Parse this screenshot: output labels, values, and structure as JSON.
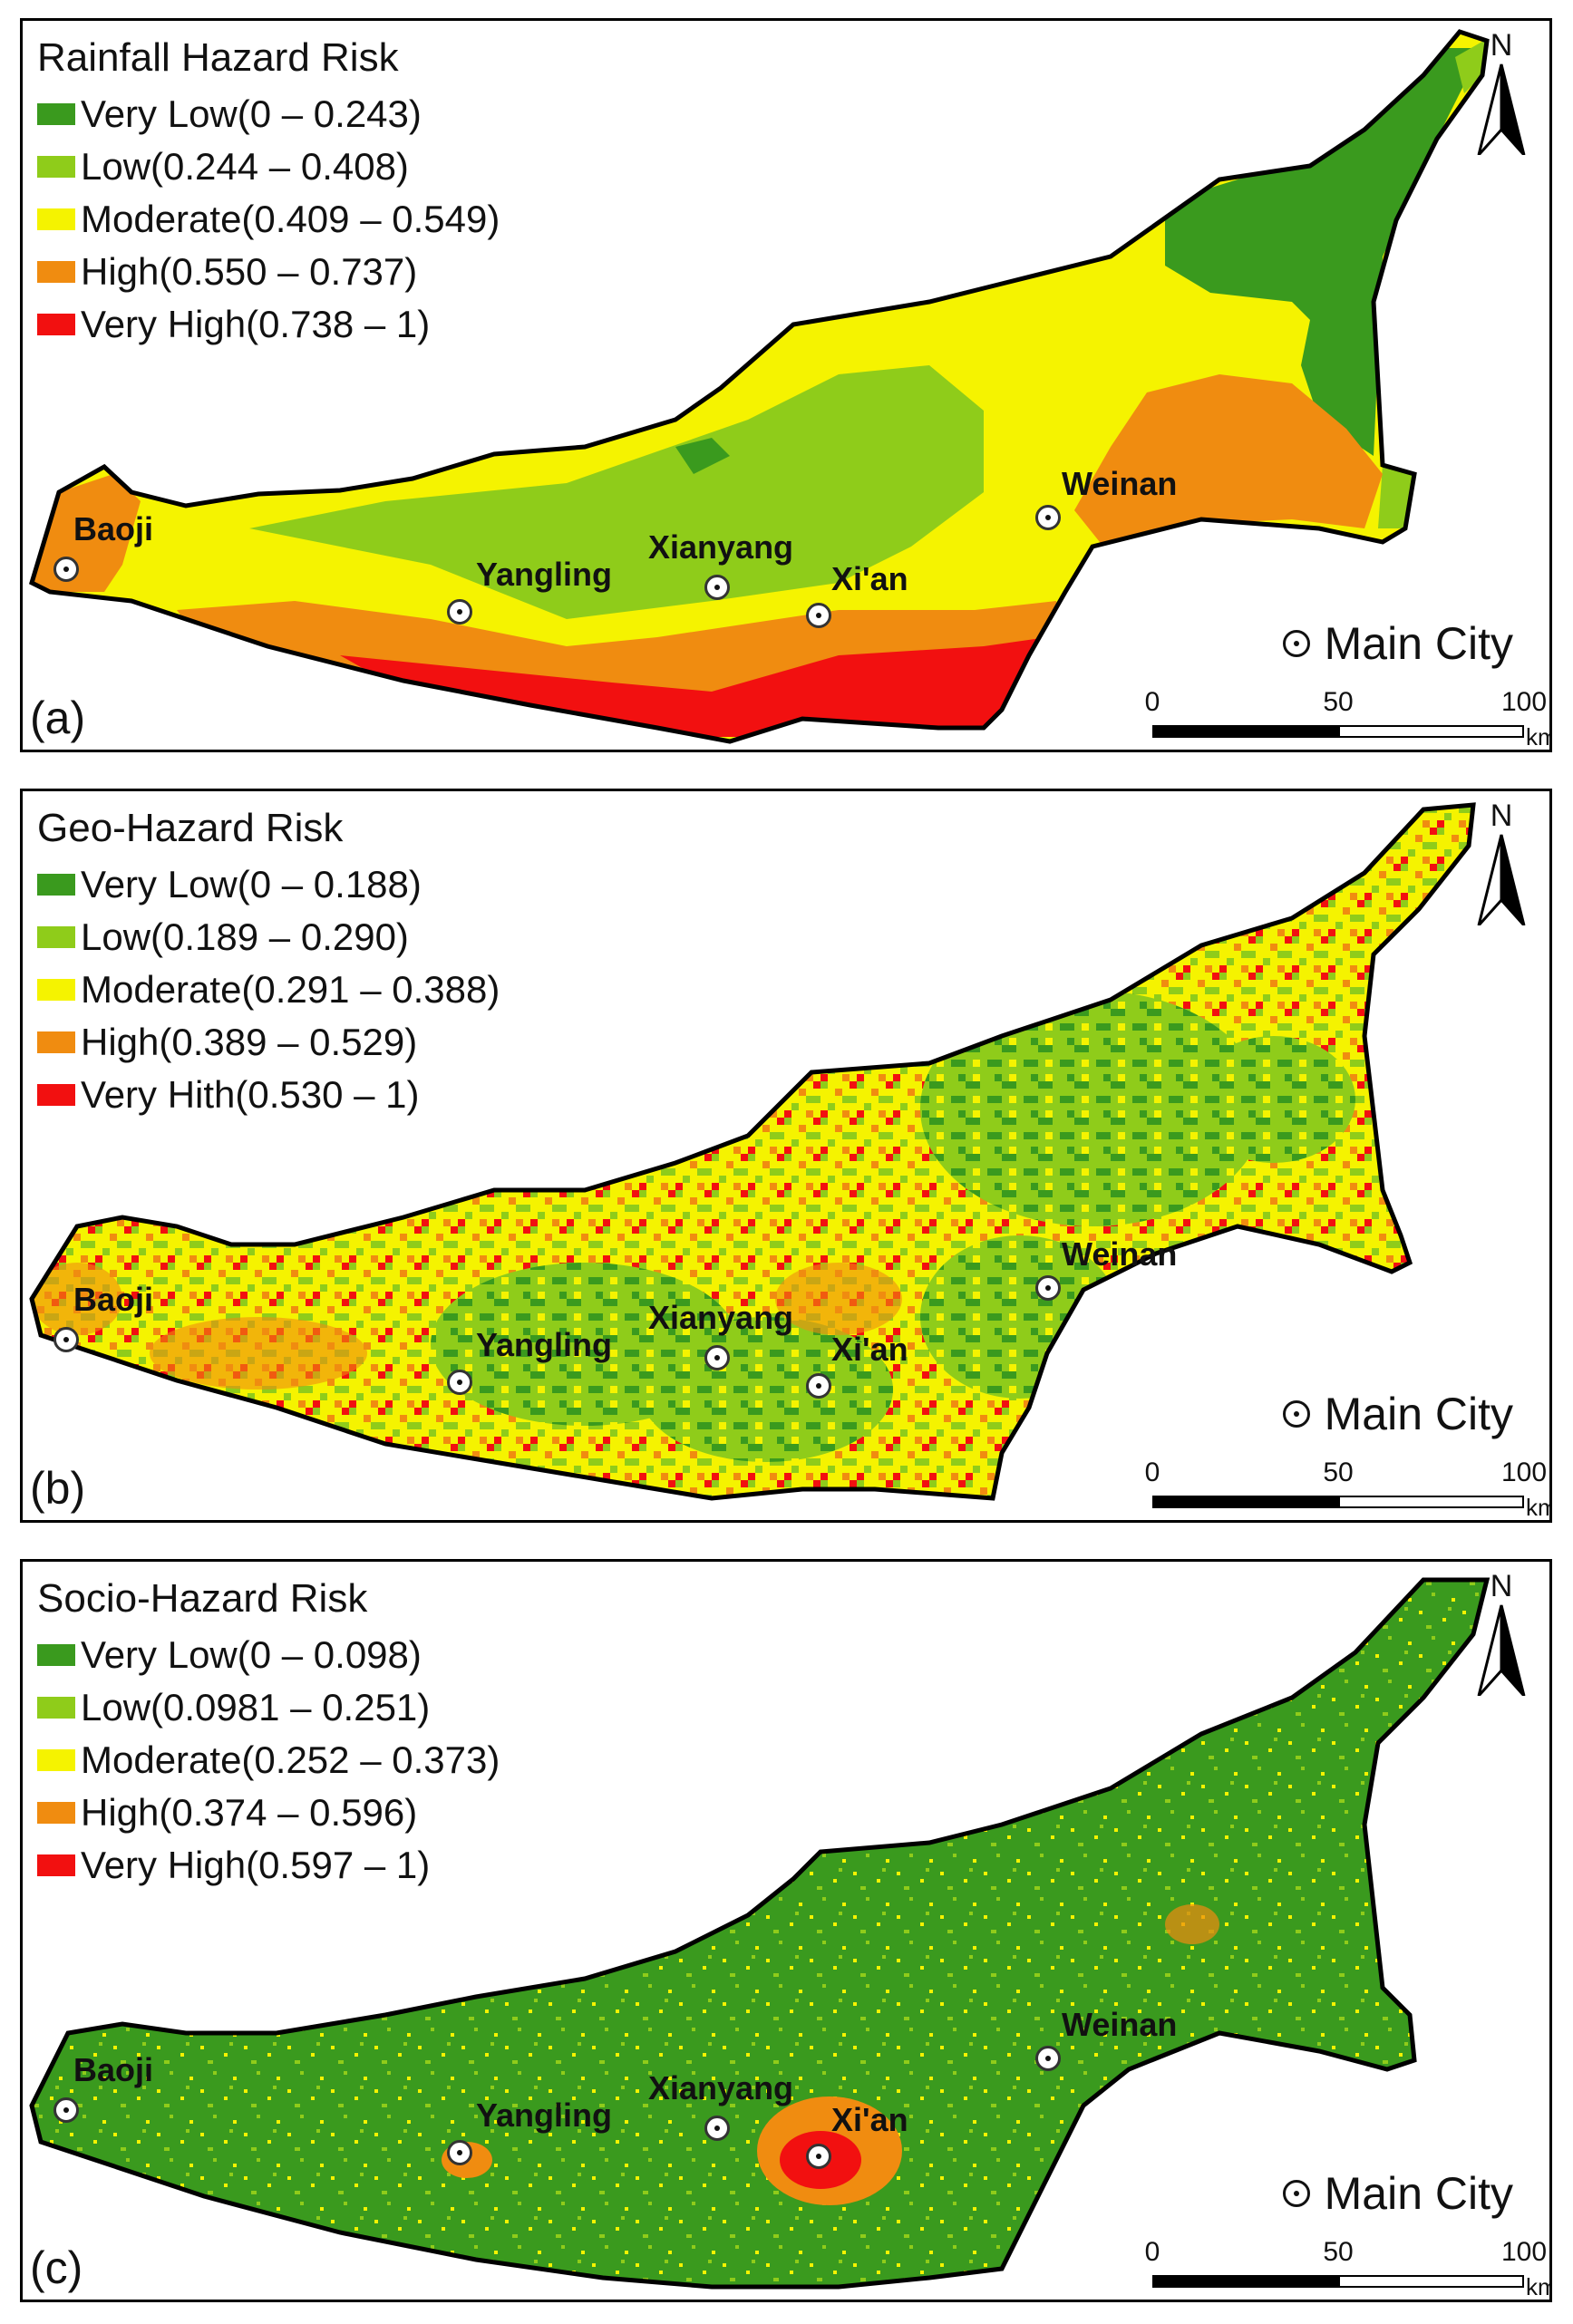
{
  "panels": [
    {
      "id": "a",
      "letter": "(a)",
      "title": "Rainfall Hazard Risk",
      "legend": [
        {
          "label": "Very Low(0 – 0.243)",
          "color": "#3a9a1e"
        },
        {
          "label": "Low(0.244 – 0.408)",
          "color": "#8fcc1a"
        },
        {
          "label": "Moderate(0.409 – 0.549)",
          "color": "#f5f300"
        },
        {
          "label": "High(0.550 – 0.737)",
          "color": "#f08c10"
        },
        {
          "label": "Very High(0.738 – 1)",
          "color": "#f21010"
        }
      ]
    },
    {
      "id": "b",
      "letter": "(b)",
      "title": "Geo-Hazard Risk",
      "legend": [
        {
          "label": "Very Low(0 – 0.188)",
          "color": "#3a9a1e"
        },
        {
          "label": "Low(0.189 – 0.290)",
          "color": "#8fcc1a"
        },
        {
          "label": "Moderate(0.291 – 0.388)",
          "color": "#f5f300"
        },
        {
          "label": "High(0.389 – 0.529)",
          "color": "#f08c10"
        },
        {
          "label": "Very Hith(0.530 – 1)",
          "color": "#f21010"
        }
      ]
    },
    {
      "id": "c",
      "letter": "(c)",
      "title": "Socio-Hazard Risk",
      "legend": [
        {
          "label": "Very Low(0 – 0.098)",
          "color": "#3a9a1e"
        },
        {
          "label": "Low(0.0981 – 0.251)",
          "color": "#8fcc1a"
        },
        {
          "label": "Moderate(0.252 – 0.373)",
          "color": "#f5f300"
        },
        {
          "label": "High(0.374 – 0.596)",
          "color": "#f08c10"
        },
        {
          "label": "Very High(0.597 – 1)",
          "color": "#f21010"
        }
      ]
    }
  ],
  "cities": [
    "Baoji",
    "Yangling",
    "Xianyang",
    "Xi'an",
    "Weinan"
  ],
  "main_city_label": "Main City",
  "north_label": "N",
  "scale": {
    "ticks": [
      "0",
      "50",
      "100"
    ],
    "unit": "km"
  }
}
